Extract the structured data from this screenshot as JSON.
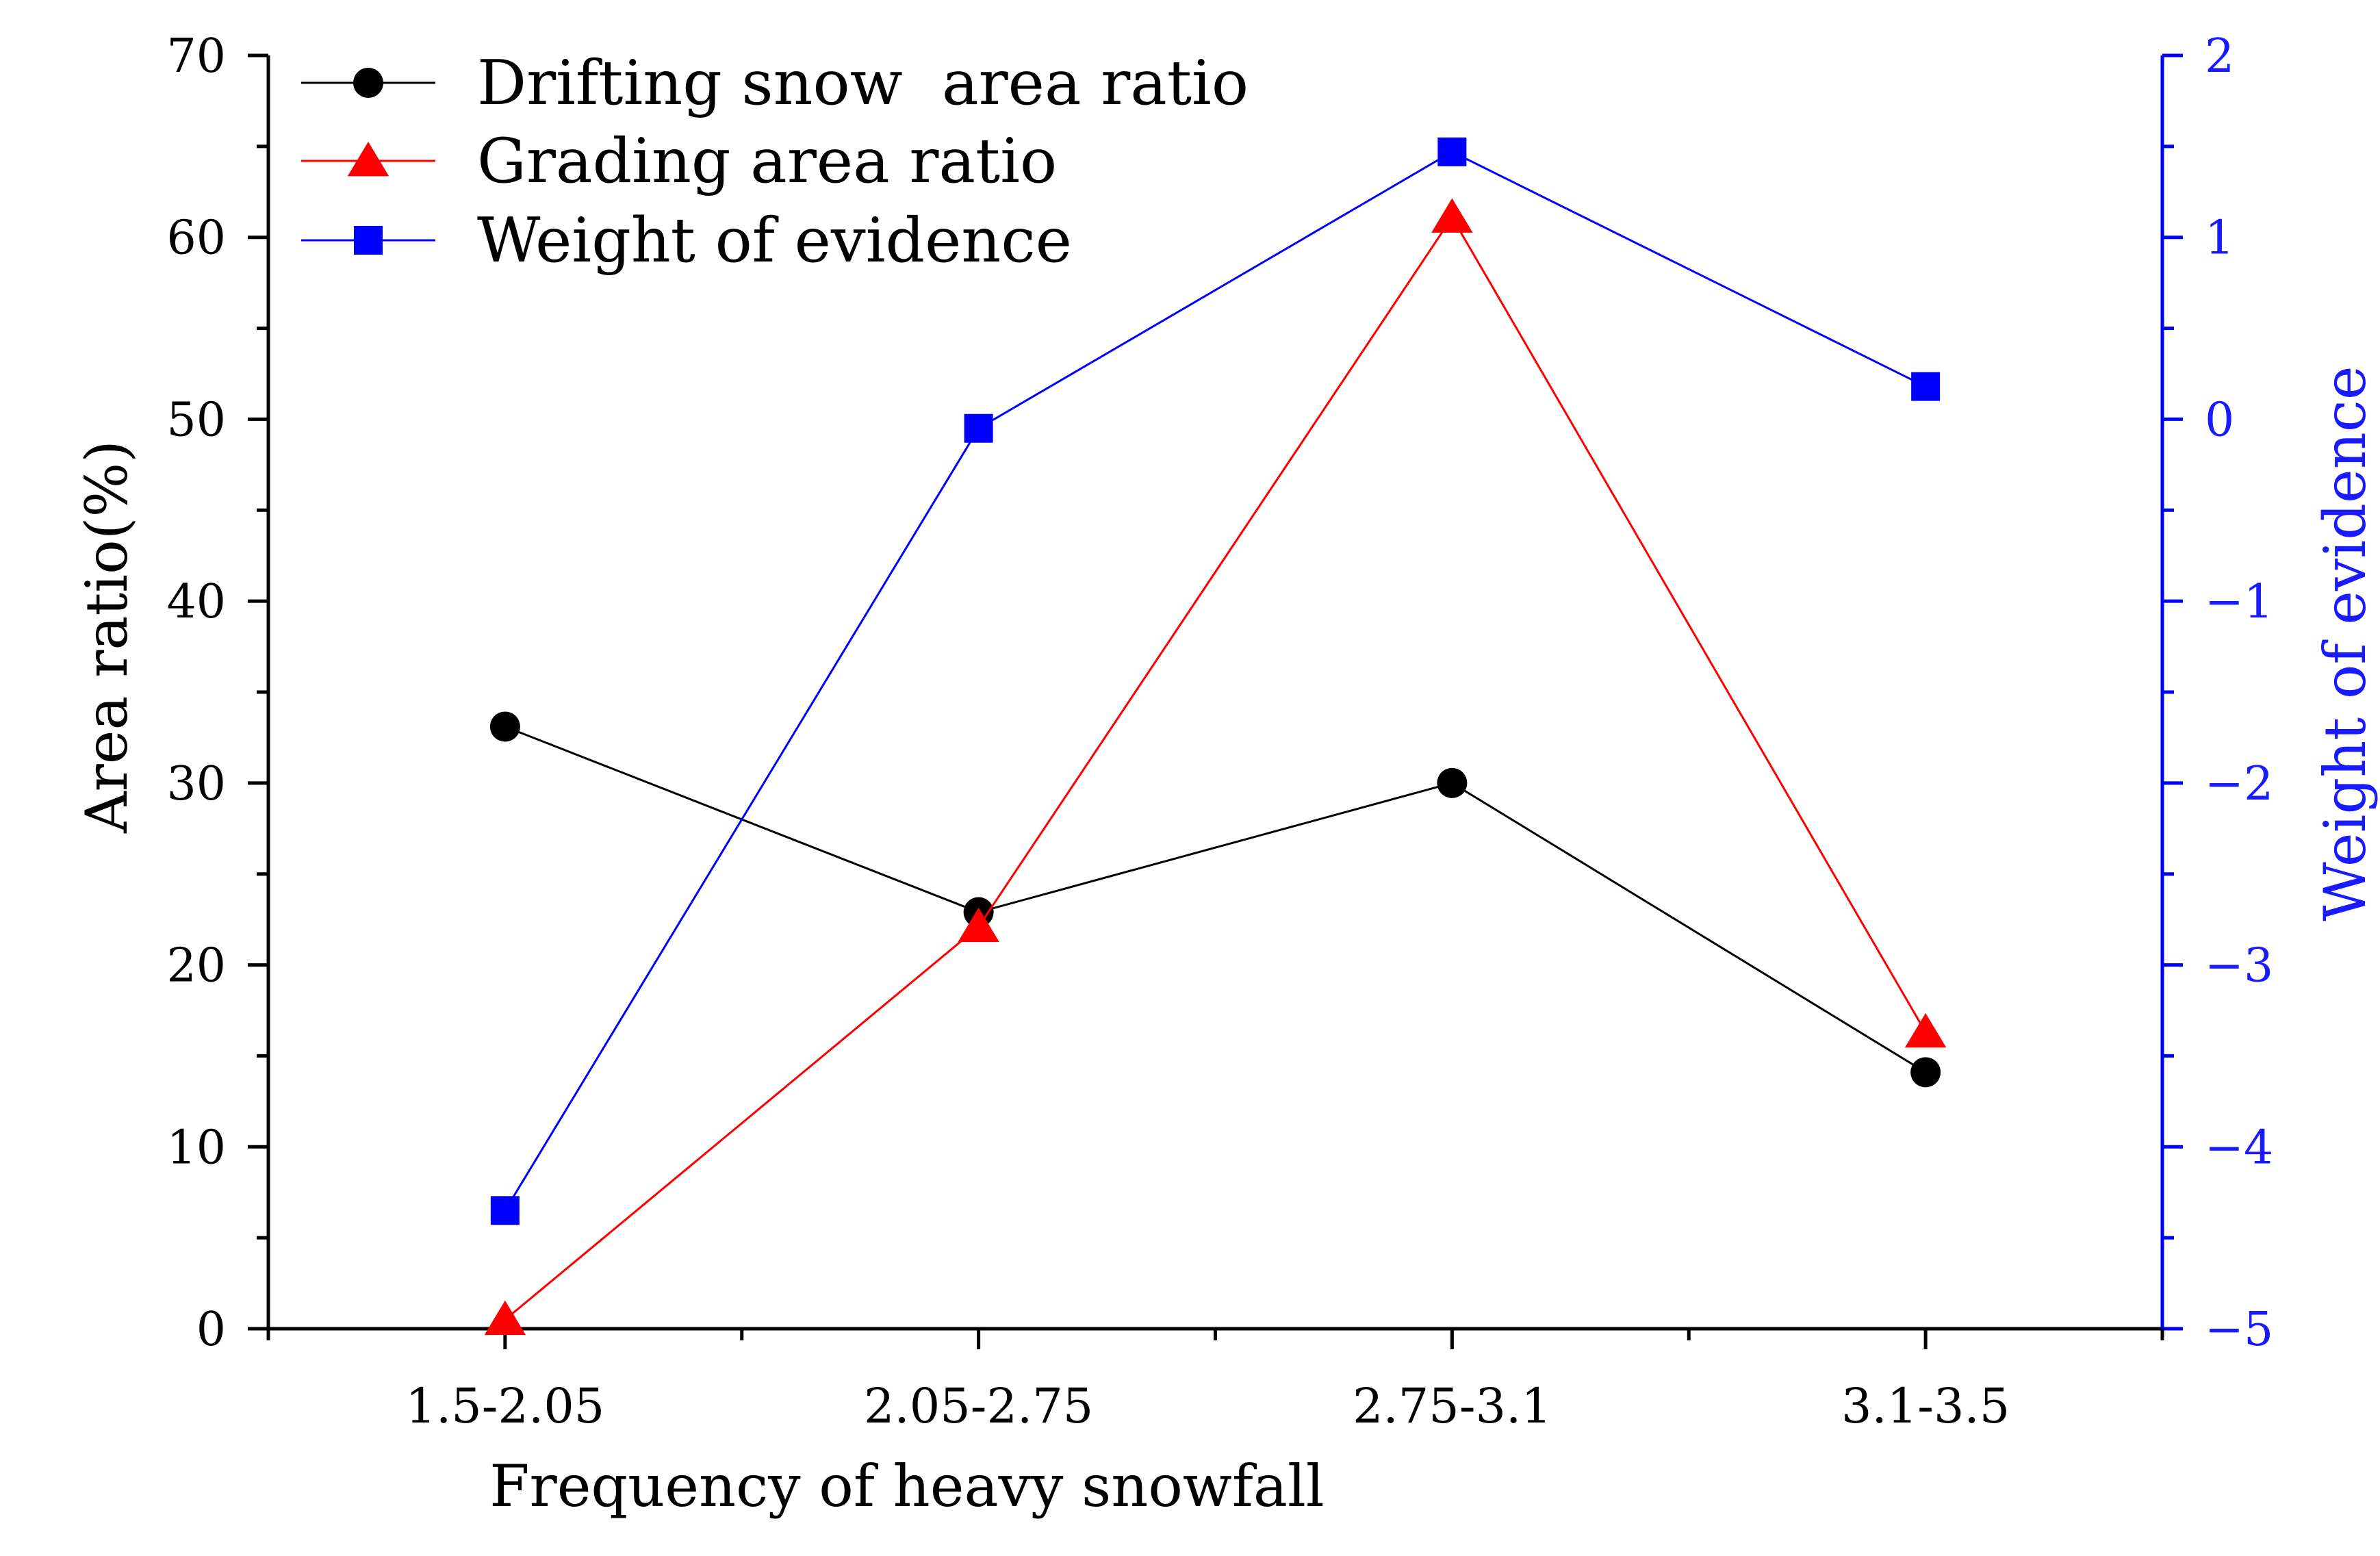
{
  "chart_data": {
    "type": "line",
    "xlabel": "Frequency of heavy snowfall",
    "ylabel": "Area ratio(%)",
    "y2label": "Weight of evidence",
    "categories": [
      "1.5-2.05",
      "2.05-2.75",
      "2.75-3.1",
      "3.1-3.5"
    ],
    "ylim": [
      0,
      70
    ],
    "y_ticks": [
      0,
      10,
      20,
      30,
      40,
      50,
      60,
      70
    ],
    "y2lim": [
      -5,
      2
    ],
    "y2_ticks": [
      -5,
      -4,
      -3,
      -2,
      -1,
      0,
      1,
      2
    ],
    "grid": false,
    "legend_position": "top-left",
    "series": [
      {
        "name": "Drifting snow  area ratio",
        "axis": "left",
        "marker": "circle",
        "color": "#000000",
        "values": [
          33.1,
          22.9,
          30.0,
          14.1
        ]
      },
      {
        "name": "Grading area ratio",
        "axis": "left",
        "marker": "triangle",
        "color": "#ff0000",
        "values": [
          0.5,
          22.1,
          61.1,
          16.3
        ]
      },
      {
        "name": "Weight of evidence",
        "axis": "right",
        "marker": "square",
        "color": "#0000ff",
        "values": [
          -4.35,
          -0.05,
          1.47,
          0.18
        ]
      }
    ]
  },
  "colors": {
    "left_axis": "#000000",
    "right_axis": "#0000ff",
    "right_tick_text": "#1a1aff"
  }
}
